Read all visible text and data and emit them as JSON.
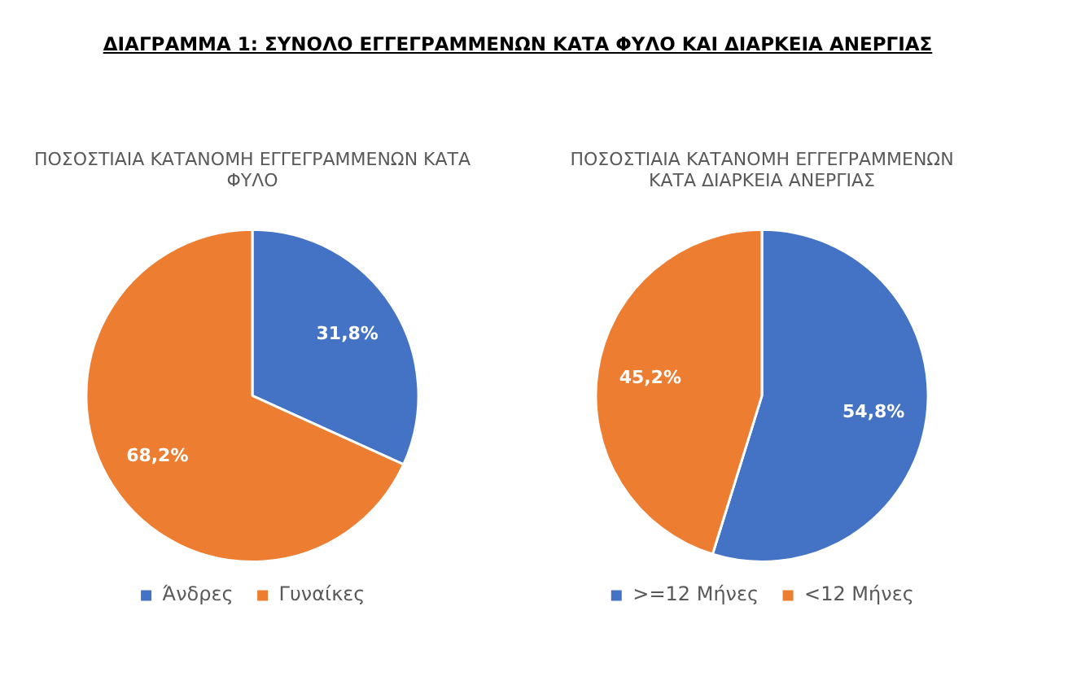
{
  "chart_data": [
    {
      "type": "other",
      "title": "ΔΙΑΓΡΑΜΜΑ 1: ΣΥΝΟΛΟ ΕΓΓΕΓΡΑΜΜΕΝΩΝ ΚΑΤΑ ΦΥΛΟ ΚΑΙ ΔΙΑΡΚΕΙΑ ΑΝΕΡΓΙΑΣ"
    },
    {
      "type": "pie",
      "title": "ΠΟΣΟΣΤΙΑΙΑ ΚΑΤΑΝΟΜΗ ΕΓΓΕΓΡΑΜΜΕΝΩΝ ΚΑΤΑ ΦΥΛΟ",
      "categories": [
        "Άνδρες",
        "Γυναίκες"
      ],
      "values": [
        31.8,
        68.2
      ],
      "colors": [
        "#4472c4",
        "#ed7d31"
      ],
      "value_labels": [
        "31,8%",
        "68,2%"
      ],
      "legend": "bottom"
    },
    {
      "type": "pie",
      "title": "ΠΟΣΟΣΤΙΑΙΑ ΚΑΤΑΝΟΜΗ ΕΓΓΕΓΡΑΜΜΕΝΩΝ ΚΑΤΑ ΔΙΑΡΚΕΙΑ ΑΝΕΡΓΙΑΣ",
      "categories": [
        ">=12 Μήνες",
        "<12 Μήνες"
      ],
      "values": [
        54.8,
        45.2
      ],
      "colors": [
        "#4472c4",
        "#ed7d31"
      ],
      "value_labels": [
        "54,8%",
        "45,2%"
      ],
      "legend": "bottom"
    }
  ]
}
